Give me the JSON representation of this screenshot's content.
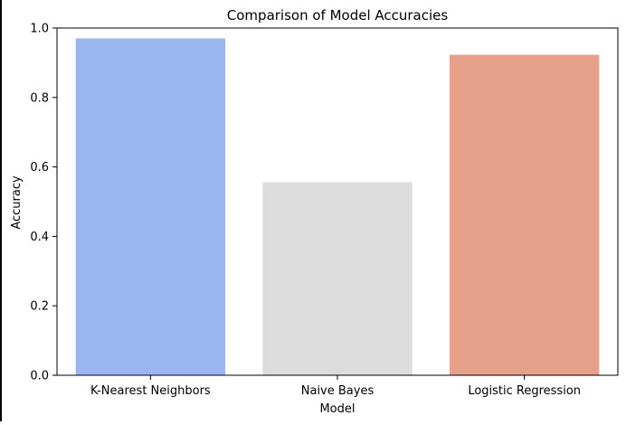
{
  "chart_data": {
    "type": "bar",
    "title": "Comparison of Model Accuracies",
    "xlabel": "Model",
    "ylabel": "Accuracy",
    "categories": [
      "K-Nearest Neighbors",
      "Naive Bayes",
      "Logistic Regression"
    ],
    "values": [
      0.97,
      0.556,
      0.923
    ],
    "colors": [
      "#9bb5f0",
      "#dddcdc",
      "#e5a08a"
    ],
    "ylim": [
      0,
      1.0
    ],
    "yticks": [
      0.0,
      0.2,
      0.4,
      0.6,
      0.8,
      1.0
    ],
    "ytick_labels": [
      "0.0",
      "0.2",
      "0.4",
      "0.6",
      "0.8",
      "1.0"
    ],
    "grid": false,
    "legend": "none"
  }
}
